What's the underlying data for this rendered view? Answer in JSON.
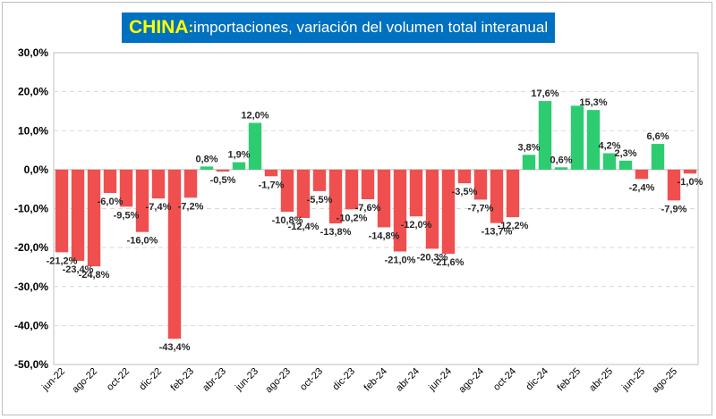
{
  "title": {
    "country": "CHINA",
    "separator": ":",
    "rest": " importaciones, variación del volumen total interanual",
    "background": "#0070c0",
    "country_color": "#ffff00",
    "text_color": "#ffffff"
  },
  "chart_data": {
    "type": "bar",
    "title": "CHINA: importaciones, variación del volumen total interanual",
    "xlabel": "",
    "ylabel": "",
    "ylim": [
      -50,
      30
    ],
    "yticks": [
      30,
      20,
      10,
      0,
      -10,
      -20,
      -30,
      -40,
      -50
    ],
    "ytick_labels": [
      "30,0%",
      "20,0%",
      "10,0%",
      "0,0%",
      "-10,0%",
      "-20,0%",
      "-30,0%",
      "-40,0%",
      "-50,0%"
    ],
    "grid": true,
    "legend": "none",
    "positive_color": "#2ecc71",
    "negative_color": "#f04f4f",
    "categories": [
      "jun-22",
      "jul-22",
      "ago-22",
      "sep-22",
      "oct-22",
      "nov-22",
      "dic-22",
      "ene-23",
      "feb-23",
      "mar-23",
      "abr-23",
      "may-23",
      "jun-23",
      "jul-23",
      "ago-23",
      "sep-23",
      "oct-23",
      "nov-23",
      "dic-23",
      "ene-24",
      "feb-24",
      "mar-24",
      "abr-24",
      "may-24",
      "jun-24",
      "jul-24",
      "ago-24",
      "sep-24",
      "oct-24",
      "nov-24",
      "dic-24",
      "ene-25",
      "feb-25",
      "mar-25",
      "abr-25",
      "may-25",
      "jun-25",
      "jul-25",
      "ago-25",
      "sep-25"
    ],
    "x_tick_labels": [
      "jun-22",
      "ago-22",
      "oct-22",
      "dic-22",
      "feb-23",
      "abr-23",
      "jun-23",
      "ago-23",
      "oct-23",
      "dic-23",
      "feb-24",
      "abr-24",
      "jun-24",
      "ago-24",
      "oct-24",
      "dic-24",
      "feb-25",
      "abr-25",
      "jun-25",
      "ago-25"
    ],
    "values": [
      -21.2,
      -23.4,
      -24.8,
      -6.0,
      -9.5,
      -16.0,
      -7.4,
      -43.4,
      -7.2,
      0.8,
      -0.5,
      1.9,
      12.0,
      -1.7,
      -10.8,
      -12.4,
      -5.5,
      -13.8,
      -10.2,
      -7.6,
      -14.8,
      -21.0,
      -12.0,
      -20.3,
      -21.6,
      -3.5,
      -7.7,
      -13.7,
      -12.2,
      3.8,
      17.6,
      0.6,
      16.4,
      15.3,
      4.2,
      2.3,
      -2.4,
      6.6,
      -7.9,
      -1.0
    ],
    "data_labels": [
      "-21,2%",
      "-23,4%",
      "-24,8%",
      "-6,0%",
      "-9,5%",
      "-16,0%",
      "-7,4%",
      "-43,4%",
      "-7,2%",
      "0,8%",
      "-0,5%",
      "1,9%",
      "12,0%",
      "-1,7%",
      "-10,8%",
      "-12,4%",
      "-5,5%",
      "-13,8%",
      "-10,2%",
      "-7,6%",
      "-14,8%",
      "-21,0%",
      "-12,0%",
      "-20,3%",
      "-21,6%",
      "-3,5%",
      "-7,7%",
      "-13,7%",
      "-12,2%",
      "3,8%",
      "17,6%",
      "0,6%",
      "",
      "15,3%",
      "4,2%",
      "2,3%",
      "-2,4%",
      "6,6%",
      "-7,9%",
      "-1,0%"
    ]
  }
}
